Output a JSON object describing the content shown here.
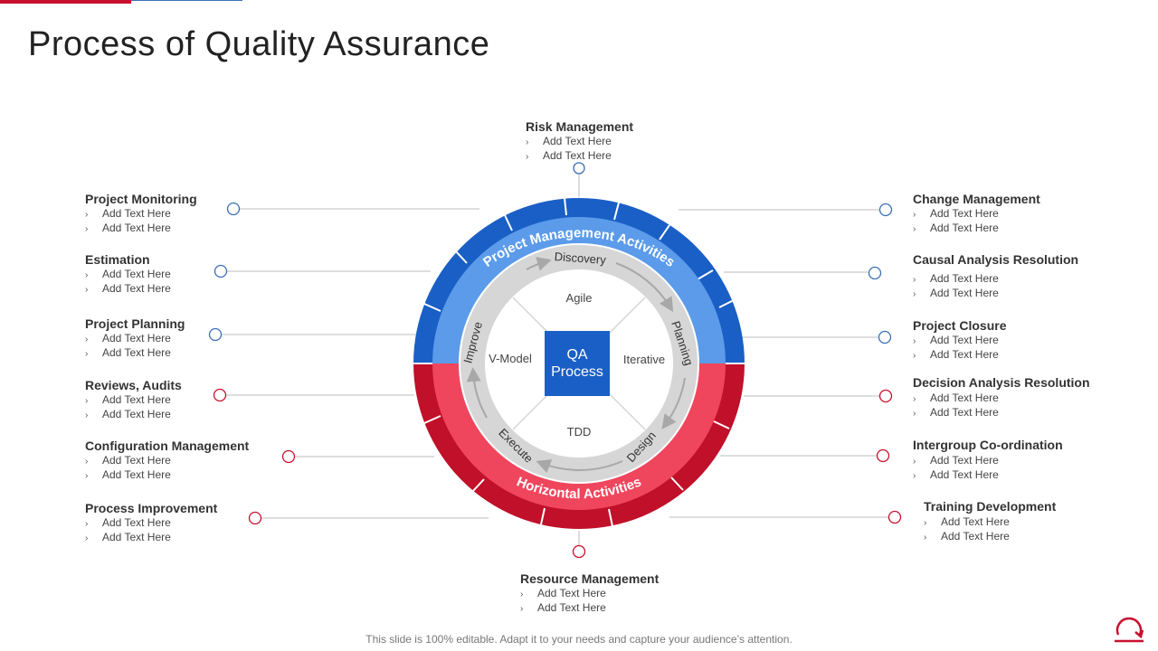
{
  "title": "Process of Quality Assurance",
  "center": {
    "line1": "QA",
    "line2": "Process"
  },
  "ring_outer_labels": {
    "top": "Project Management Activities",
    "bottom": "Horizontal Activities"
  },
  "cycle": {
    "top": "Discovery",
    "right": "Planning",
    "bottom_right": "Design",
    "bottom_left": "Execute",
    "left": "Improve"
  },
  "quadrants": {
    "top": "Agile",
    "right": "Iterative",
    "bottom": "TDD",
    "left": "V-Model"
  },
  "bullet_text": "Add Text Here",
  "blocks": {
    "risk_management": {
      "heading": "Risk Management",
      "items": [
        "Add Text Here",
        "Add Text Here"
      ]
    },
    "project_monitoring": {
      "heading": "Project Monitoring",
      "items": [
        "Add Text Here",
        "Add Text Here"
      ]
    },
    "estimation": {
      "heading": "Estimation",
      "items": [
        "Add Text Here",
        "Add Text Here"
      ]
    },
    "project_planning": {
      "heading": "Project Planning",
      "items": [
        "Add Text Here",
        "Add Text Here"
      ]
    },
    "reviews_audits": {
      "heading": "Reviews, Audits",
      "items": [
        "Add Text Here",
        "Add Text Here"
      ]
    },
    "configuration_management": {
      "heading": "Configuration Management",
      "items": [
        "Add Text Here",
        "Add Text Here"
      ]
    },
    "process_improvement": {
      "heading": "Process Improvement",
      "items": [
        "Add Text Here",
        "Add Text Here"
      ]
    },
    "resource_management": {
      "heading": "Resource Management",
      "items": [
        "Add Text Here",
        "Add Text Here"
      ]
    },
    "change_management": {
      "heading": "Change Management",
      "items": [
        "Add Text Here",
        "Add Text Here"
      ]
    },
    "causal_analysis_resolution": {
      "heading": "Causal Analysis Resolution",
      "items": [
        "Add Text Here",
        "Add Text Here"
      ]
    },
    "project_closure": {
      "heading": "Project Closure",
      "items": [
        "Add Text Here",
        "Add Text Here"
      ]
    },
    "decision_analysis_resolution": {
      "heading": "Decision Analysis Resolution",
      "items": [
        "Add Text Here",
        "Add Text Here"
      ]
    },
    "intergroup_coordination": {
      "heading": "Intergroup Co-ordination",
      "items": [
        "Add Text Here",
        "Add Text Here"
      ]
    },
    "training_development": {
      "heading": "Training Development",
      "items": [
        "Add Text Here",
        "Add Text Here"
      ]
    }
  },
  "footer": "This slide is 100% editable. Adapt it to your needs and capture your audience’s attention.",
  "colors": {
    "blue_dark": "#1a5fc5",
    "blue_light": "#5b9bea",
    "red_dark": "#c0102a",
    "red_light": "#f0465d",
    "gray_ring": "#d6d6d6",
    "accent": "#c8102e"
  },
  "icons": {
    "logo": "refresh-cycle-icon",
    "bullet": "chevron-right-icon"
  }
}
